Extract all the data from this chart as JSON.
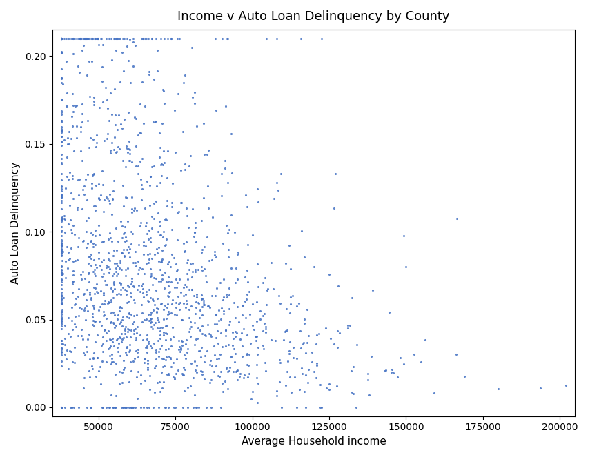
{
  "title": "Income v Auto Loan Delinquency by County",
  "xlabel": "Average Household income",
  "ylabel": "Auto Loan Delinquency",
  "xlim": [
    35000,
    205000
  ],
  "ylim": [
    -0.005,
    0.215
  ],
  "point_color": "#4472C4",
  "point_size": 5,
  "point_alpha": 0.85,
  "seed": 123,
  "n_points": 1600,
  "xticks": [
    50000,
    75000,
    100000,
    125000,
    150000,
    175000,
    200000
  ],
  "yticks": [
    0.0,
    0.05,
    0.1,
    0.15,
    0.2
  ]
}
